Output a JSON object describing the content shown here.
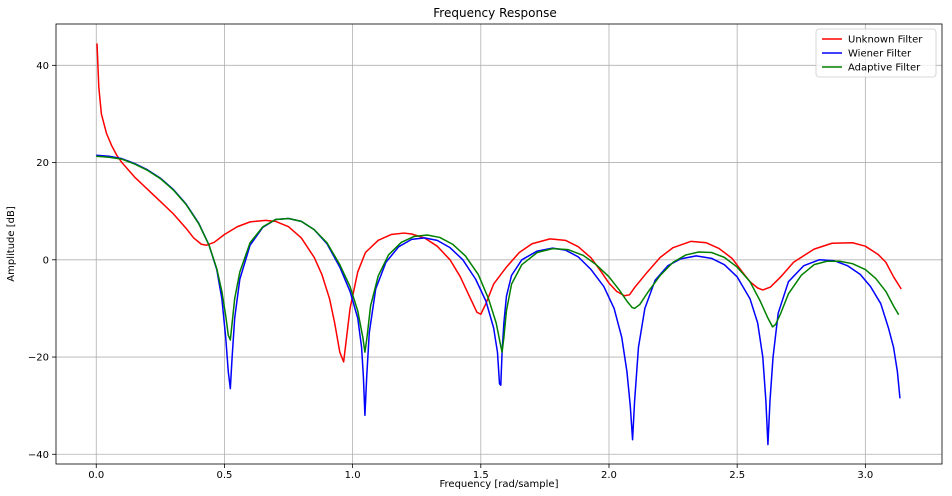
{
  "chart_data": {
    "type": "line",
    "title": "Frequency Response",
    "xlabel": "Frequency [rad/sample]",
    "ylabel": "Amplitude [dB]",
    "xlim": [
      -0.157,
      3.299
    ],
    "ylim": [
      -42,
      48.5
    ],
    "xticks": [
      0.0,
      0.5,
      1.0,
      1.5,
      2.0,
      2.5,
      3.0
    ],
    "xtick_labels": [
      "0.0",
      "0.5",
      "1.0",
      "1.5",
      "2.0",
      "2.5",
      "3.0"
    ],
    "yticks": [
      -40,
      -20,
      0,
      20,
      40
    ],
    "ytick_labels": [
      "−40",
      "−20",
      "0",
      "20",
      "40"
    ],
    "grid": true,
    "legend_position": "top-right",
    "series": [
      {
        "name": "Unknown Filter",
        "color": "#ff0000",
        "x": [
          0.003,
          0.01,
          0.02,
          0.04,
          0.06,
          0.08,
          0.1,
          0.15,
          0.2,
          0.25,
          0.3,
          0.35,
          0.38,
          0.41,
          0.43,
          0.46,
          0.5,
          0.55,
          0.6,
          0.66,
          0.7,
          0.75,
          0.8,
          0.85,
          0.88,
          0.91,
          0.93,
          0.95,
          0.965,
          0.99,
          1.02,
          1.05,
          1.1,
          1.15,
          1.2,
          1.23,
          1.28,
          1.33,
          1.38,
          1.42,
          1.46,
          1.485,
          1.5,
          1.52,
          1.55,
          1.6,
          1.65,
          1.7,
          1.77,
          1.83,
          1.88,
          1.93,
          1.97,
          2.0,
          2.03,
          2.06,
          2.08,
          2.1,
          2.15,
          2.2,
          2.25,
          2.32,
          2.38,
          2.43,
          2.48,
          2.52,
          2.55,
          2.58,
          2.6,
          2.63,
          2.67,
          2.72,
          2.8,
          2.87,
          2.95,
          3.0,
          3.05,
          3.08,
          3.11,
          3.14
        ],
        "values": [
          44.5,
          35.5,
          30,
          26,
          23.5,
          21.5,
          20,
          17,
          14.5,
          12,
          9.5,
          6.5,
          4.5,
          3.2,
          3,
          3.6,
          5.2,
          6.8,
          7.8,
          8.1,
          7.9,
          6.8,
          4.5,
          0.5,
          -3,
          -8,
          -13,
          -19,
          -21,
          -10,
          -2.5,
          1.5,
          4,
          5.2,
          5.5,
          5.3,
          4.5,
          2.8,
          0,
          -3.5,
          -8,
          -10.8,
          -11.2,
          -9,
          -5,
          -1.5,
          1.5,
          3.3,
          4.3,
          4,
          2.7,
          0.4,
          -2.5,
          -4.8,
          -6.5,
          -7.4,
          -7.2,
          -5.7,
          -2.5,
          0.5,
          2.5,
          3.8,
          3.5,
          2.3,
          0.3,
          -2.5,
          -4.5,
          -5.8,
          -6.2,
          -5.6,
          -3.5,
          -0.5,
          2.2,
          3.4,
          3.5,
          2.8,
          1.1,
          -0.5,
          -3.5,
          -6
        ]
      },
      {
        "name": "Wiener Filter",
        "color": "#0000ff",
        "x": [
          0.0,
          0.05,
          0.1,
          0.15,
          0.2,
          0.25,
          0.3,
          0.35,
          0.4,
          0.44,
          0.47,
          0.49,
          0.505,
          0.515,
          0.523,
          0.53,
          0.54,
          0.56,
          0.6,
          0.65,
          0.7,
          0.75,
          0.8,
          0.85,
          0.9,
          0.95,
          0.99,
          1.02,
          1.035,
          1.042,
          1.048,
          1.055,
          1.065,
          1.09,
          1.13,
          1.18,
          1.23,
          1.28,
          1.33,
          1.38,
          1.43,
          1.48,
          1.52,
          1.55,
          1.565,
          1.573,
          1.578,
          1.583,
          1.59,
          1.6,
          1.62,
          1.66,
          1.72,
          1.78,
          1.83,
          1.88,
          1.93,
          1.98,
          2.02,
          2.05,
          2.07,
          2.083,
          2.092,
          2.1,
          2.115,
          2.14,
          2.18,
          2.23,
          2.28,
          2.34,
          2.4,
          2.45,
          2.5,
          2.55,
          2.58,
          2.6,
          2.612,
          2.62,
          2.628,
          2.64,
          2.66,
          2.7,
          2.76,
          2.82,
          2.88,
          2.93,
          2.98,
          3.02,
          3.06,
          3.09,
          3.11,
          3.125,
          3.135
        ],
        "values": [
          21.5,
          21.3,
          20.8,
          19.8,
          18.5,
          16.8,
          14.5,
          11.5,
          7.5,
          3,
          -2,
          -8,
          -16,
          -23,
          -26.5,
          -20,
          -12,
          -4,
          3,
          6.7,
          8.3,
          8.5,
          7.9,
          6.2,
          3.3,
          -1.5,
          -6.5,
          -12,
          -18,
          -24,
          -32,
          -24,
          -15,
          -6,
          -0.5,
          2.7,
          4.2,
          4.5,
          4,
          2.5,
          0,
          -4,
          -8.5,
          -14,
          -19,
          -25.5,
          -25.8,
          -19,
          -13,
          -7.5,
          -3.2,
          0,
          1.8,
          2.4,
          2,
          0.6,
          -2,
          -5.5,
          -10,
          -16,
          -23,
          -30,
          -37,
          -29,
          -18,
          -10,
          -4.2,
          -1.2,
          0.2,
          0.8,
          0.3,
          -1,
          -3.5,
          -8,
          -13,
          -20,
          -29,
          -38,
          -29,
          -20,
          -11,
          -4.5,
          -1.2,
          0,
          -0.2,
          -1.2,
          -3,
          -5.5,
          -9,
          -14,
          -18,
          -23,
          -28.5
        ]
      },
      {
        "name": "Adaptive Filter",
        "color": "#008000",
        "x": [
          0.0,
          0.05,
          0.1,
          0.15,
          0.2,
          0.25,
          0.3,
          0.35,
          0.4,
          0.44,
          0.47,
          0.49,
          0.505,
          0.515,
          0.523,
          0.53,
          0.54,
          0.56,
          0.6,
          0.65,
          0.7,
          0.75,
          0.8,
          0.85,
          0.9,
          0.95,
          0.99,
          1.02,
          1.04,
          1.048,
          1.056,
          1.07,
          1.1,
          1.14,
          1.19,
          1.24,
          1.29,
          1.34,
          1.39,
          1.44,
          1.49,
          1.53,
          1.56,
          1.575,
          1.583,
          1.59,
          1.6,
          1.62,
          1.66,
          1.72,
          1.78,
          1.84,
          1.9,
          1.95,
          2.0,
          2.04,
          2.07,
          2.09,
          2.1,
          2.12,
          2.15,
          2.2,
          2.25,
          2.3,
          2.35,
          2.4,
          2.45,
          2.5,
          2.55,
          2.59,
          2.62,
          2.638,
          2.65,
          2.67,
          2.7,
          2.75,
          2.8,
          2.85,
          2.9,
          2.95,
          3.0,
          3.04,
          3.08,
          3.11,
          3.13
        ],
        "values": [
          21.3,
          21.1,
          20.7,
          19.7,
          18.4,
          16.7,
          14.4,
          11.4,
          7.4,
          3,
          -1.8,
          -6.5,
          -11.5,
          -15.5,
          -16.5,
          -13,
          -8,
          -2.5,
          3.5,
          6.8,
          8.3,
          8.5,
          7.9,
          6.2,
          3.5,
          -1,
          -5.5,
          -10.5,
          -16,
          -19,
          -16,
          -9.5,
          -3.3,
          1,
          3.6,
          4.8,
          5.1,
          4.6,
          3.2,
          0.8,
          -3,
          -8,
          -13,
          -17,
          -19,
          -16,
          -10.5,
          -5,
          -1,
          1.5,
          2.3,
          2.1,
          0.9,
          -1,
          -3.5,
          -6.2,
          -8.5,
          -9.8,
          -10,
          -9.2,
          -6.8,
          -3.2,
          -0.5,
          1,
          1.6,
          1.5,
          0.5,
          -1.5,
          -4.5,
          -8.5,
          -12,
          -13.8,
          -13.3,
          -11,
          -7,
          -3.2,
          -1,
          -0.3,
          -0.3,
          -0.8,
          -2,
          -3.8,
          -6.5,
          -9.5,
          -11.3
        ]
      }
    ]
  }
}
